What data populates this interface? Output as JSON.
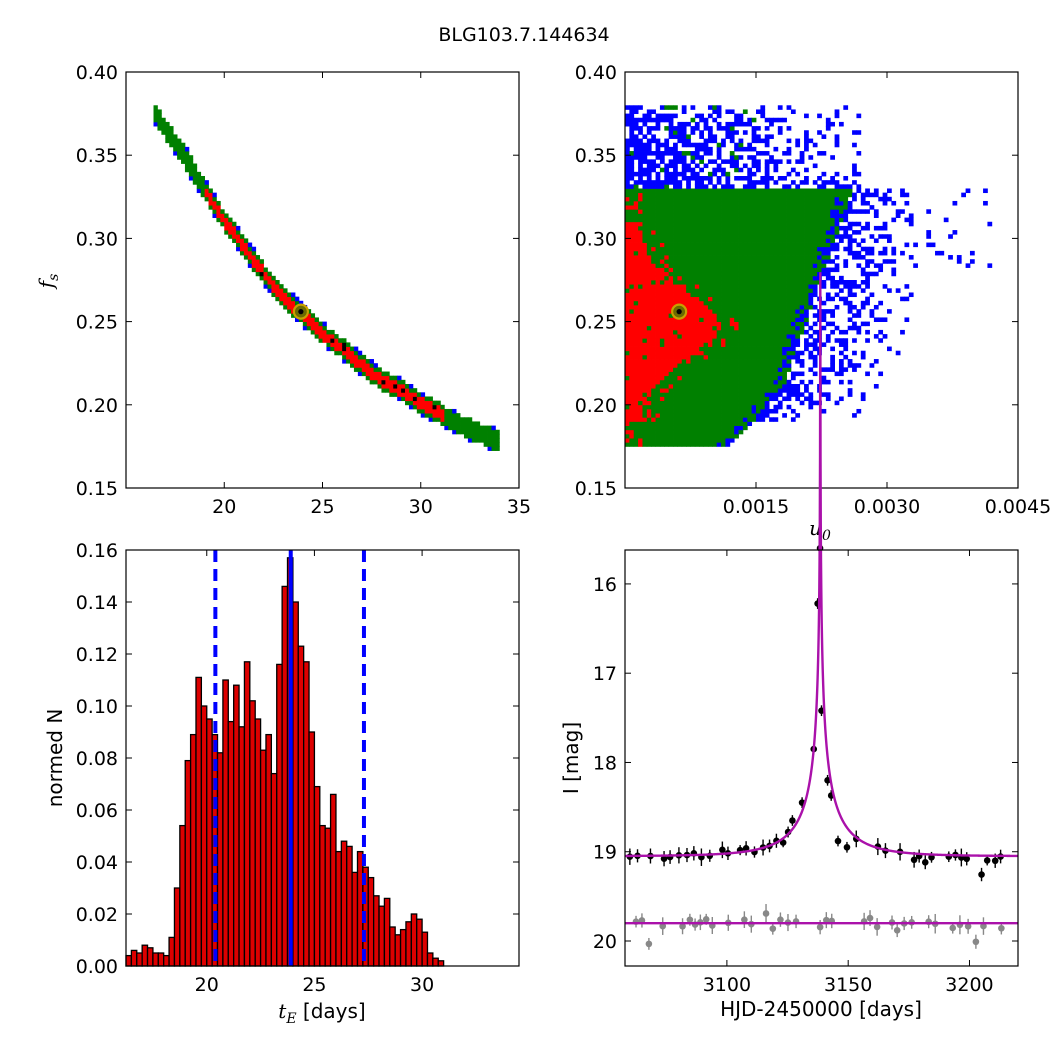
{
  "figure": {
    "suptitle": "BLG103.7.144634"
  },
  "colors": {
    "red": "#ff0000",
    "green": "#008000",
    "blue": "#0000ff",
    "black": "#000000",
    "gold": "#c8a000",
    "olive": "#6b6b00",
    "magenta": "#aa11aa",
    "gray": "#888888",
    "bar_fill": "#dd0000"
  },
  "chart_data": [
    {
      "id": "fs_vs_tE",
      "type": "heatmap",
      "title": "",
      "xlabel": "",
      "ylabel": "f_s",
      "xlim": [
        15,
        35
      ],
      "ylim": [
        0.15,
        0.4
      ],
      "xticks": [
        20,
        25,
        30,
        35
      ],
      "yticks": [
        0.15,
        0.2,
        0.25,
        0.3,
        0.35,
        0.4
      ],
      "ytick_labels": [
        "0.15",
        "0.20",
        "0.25",
        "0.30",
        "0.35",
        "0.40"
      ],
      "xtick_labels": [
        "20",
        "25",
        "30",
        "35"
      ],
      "band_centerline": [
        [
          16.5,
          0.375
        ],
        [
          17,
          0.366
        ],
        [
          18,
          0.349
        ],
        [
          19,
          0.329
        ],
        [
          20,
          0.311
        ],
        [
          21,
          0.295
        ],
        [
          22,
          0.279
        ],
        [
          23,
          0.265
        ],
        [
          24,
          0.254
        ],
        [
          25,
          0.243
        ],
        [
          26,
          0.234
        ],
        [
          27,
          0.224
        ],
        [
          28,
          0.215
        ],
        [
          29,
          0.209
        ],
        [
          30,
          0.201
        ],
        [
          31,
          0.195
        ],
        [
          32,
          0.188
        ],
        [
          33,
          0.183
        ],
        [
          34,
          0.178
        ]
      ],
      "levels": [
        "1sigma (red)",
        "2sigma (green)",
        "3sigma (blue)"
      ],
      "best_fit": {
        "x": 23.9,
        "y": 0.256
      }
    },
    {
      "id": "fs_vs_u0",
      "type": "heatmap",
      "title": "",
      "xlabel": "u_0",
      "ylabel": "",
      "xlim": [
        0,
        0.0045
      ],
      "ylim": [
        0.15,
        0.4
      ],
      "xticks": [
        0.0015,
        0.003,
        0.0045
      ],
      "xtick_labels": [
        "0.0015",
        "0.0030",
        "0.0045"
      ],
      "yticks": [
        0.15,
        0.2,
        0.25,
        0.3,
        0.35,
        0.4
      ],
      "ytick_labels": [
        "0.15",
        "0.20",
        "0.25",
        "0.30",
        "0.35",
        "0.40"
      ],
      "regions": {
        "green_block": {
          "u0": [
            0,
            0.00195
          ],
          "fs": [
            0.175,
            0.33
          ]
        },
        "green_extension": {
          "u0": [
            0.00195,
            0.0026
          ],
          "fs": [
            0.21,
            0.33
          ]
        },
        "red_core": {
          "u0": [
            0,
            0.0011
          ],
          "fs": [
            0.19,
            0.31
          ]
        },
        "blue_upper": {
          "u0": [
            0,
            0.0027
          ],
          "fs": [
            0.33,
            0.38
          ]
        },
        "blue_scatter": {
          "u0": [
            0.0015,
            0.0043
          ],
          "fs": [
            0.19,
            0.33
          ]
        }
      },
      "best_fit": {
        "x": 0.00062,
        "y": 0.256
      }
    },
    {
      "id": "tE_histogram",
      "type": "bar",
      "title": "",
      "xlabel": "t_E [days]",
      "ylabel": "normed N",
      "xlim": [
        16.25,
        34.5
      ],
      "ylim": [
        0,
        0.16
      ],
      "xticks": [
        20,
        25,
        30
      ],
      "xtick_labels": [
        "20",
        "25",
        "30"
      ],
      "yticks": [
        0.0,
        0.02,
        0.04,
        0.06,
        0.08,
        0.1,
        0.12,
        0.14,
        0.16
      ],
      "ytick_labels": [
        "0.00",
        "0.02",
        "0.04",
        "0.06",
        "0.08",
        "0.10",
        "0.12",
        "0.14",
        "0.16"
      ],
      "bin_start": 16.25,
      "bin_width": 0.25,
      "values": [
        0.004,
        0.006,
        0.005,
        0.008,
        0.007,
        0.005,
        0.005,
        0.004,
        0.011,
        0.03,
        0.054,
        0.079,
        0.089,
        0.111,
        0.1,
        0.095,
        0.089,
        0.082,
        0.11,
        0.094,
        0.108,
        0.092,
        0.117,
        0.102,
        0.095,
        0.083,
        0.089,
        0.074,
        0.116,
        0.146,
        0.157,
        0.14,
        0.123,
        0.117,
        0.09,
        0.069,
        0.054,
        0.053,
        0.066,
        0.044,
        0.048,
        0.046,
        0.036,
        0.044,
        0.038,
        0.034,
        0.027,
        0.023,
        0.026,
        0.015,
        0.012,
        0.014,
        0.017,
        0.02,
        0.018,
        0.013,
        0.005,
        0.003,
        0.002
      ],
      "vlines": {
        "median": 23.9,
        "lower": 20.4,
        "upper": 27.3
      }
    },
    {
      "id": "lightcurve",
      "type": "scatter",
      "title": "",
      "xlabel": "HJD-2450000 [days]",
      "ylabel": "I [mag]",
      "xlim": [
        3058,
        3220
      ],
      "ylim": [
        20.28,
        15.62
      ],
      "xticks": [
        3100,
        3150,
        3200
      ],
      "xtick_labels": [
        "3100",
        "3150",
        "3200"
      ],
      "yticks": [
        16,
        17,
        18,
        19,
        20
      ],
      "ytick_labels": [
        "16",
        "17",
        "18",
        "19",
        "20"
      ],
      "model": {
        "t0": 3138.5,
        "tE": 23.9,
        "u0": 0.00062,
        "I_base": 19.05,
        "fs": 0.256
      },
      "gray_baseline": 19.8,
      "peak_points": [
        [
          3137.4,
          16.22
        ],
        [
          3138.4,
          15.6
        ],
        [
          3139.0,
          17.42
        ],
        [
          3135.8,
          17.85
        ],
        [
          3141.5,
          18.2
        ],
        [
          3143.0,
          18.37
        ],
        [
          3131.0,
          18.45
        ],
        [
          3127.0,
          18.65
        ],
        [
          3145.8,
          18.88
        ],
        [
          3149.5,
          18.95
        ]
      ]
    }
  ]
}
